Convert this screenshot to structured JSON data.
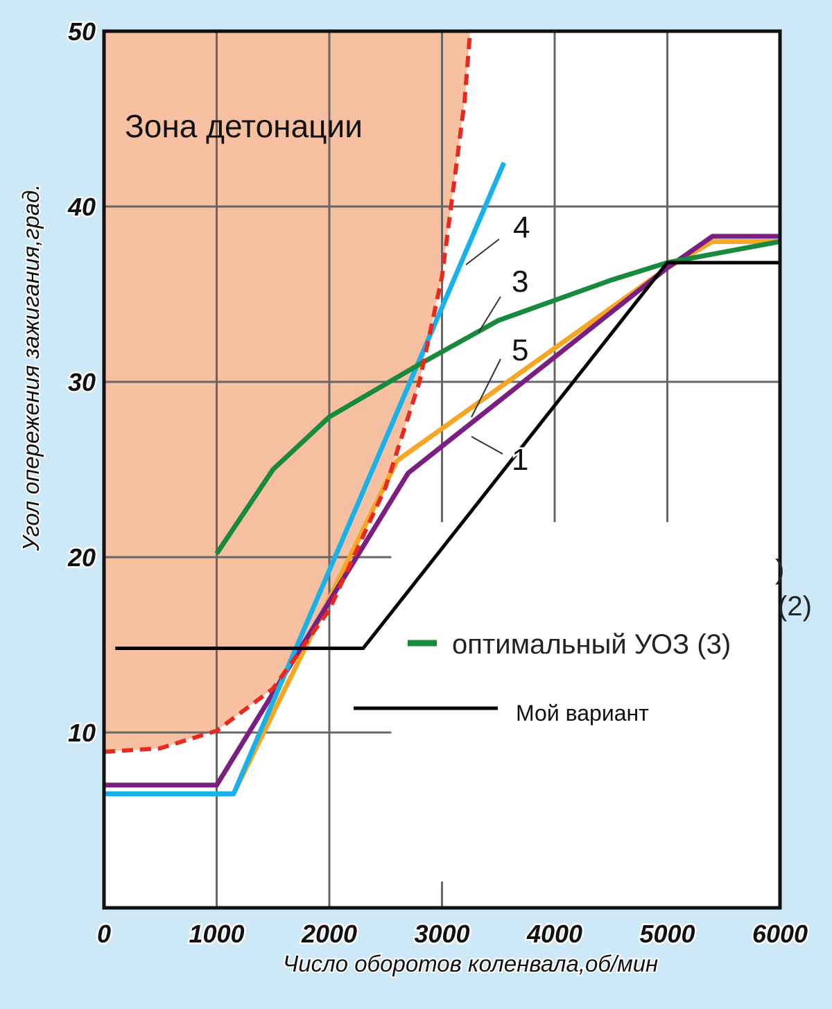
{
  "chart_data": {
    "type": "line",
    "title": "",
    "xlabel": "Число оборотов коленвала,об/мин",
    "ylabel": "Угол опережения зажигания,град.",
    "xlim": [
      0,
      6000
    ],
    "ylim": [
      0,
      50
    ],
    "xticks": [
      0,
      1000,
      2000,
      3000,
      4000,
      5000,
      6000
    ],
    "yticks": [
      10,
      20,
      30,
      40,
      50
    ],
    "grid": true,
    "zone_label": "Зона детонации",
    "series": [
      {
        "name": "detonation-boundary",
        "label": "",
        "color": "#e8291f",
        "style": "dashed",
        "x": [
          0,
          500,
          1000,
          1500,
          2000,
          2500,
          2800,
          3000,
          3100,
          3200,
          3250
        ],
        "y": [
          8.9,
          9.1,
          10.1,
          12.5,
          17,
          24,
          30,
          36,
          41,
          46,
          50
        ]
      },
      {
        "name": "curve-4",
        "label": "4",
        "color": "#1ab0e8",
        "style": "solid",
        "x": [
          0,
          1150,
          3550
        ],
        "y": [
          6.5,
          6.5,
          42.5
        ]
      },
      {
        "name": "curve-3",
        "label": "3",
        "color": "#178a3e",
        "style": "solid",
        "x": [
          1000,
          1500,
          2000,
          2800,
          3500,
          4500,
          5000,
          6000
        ],
        "y": [
          20.2,
          25,
          28,
          31,
          33.5,
          35.8,
          36.8,
          38
        ]
      },
      {
        "name": "curve-5",
        "label": "5",
        "color": "#f5a623",
        "style": "solid",
        "x": [
          0,
          1150,
          2600,
          5000,
          5400,
          6000
        ],
        "y": [
          6.5,
          6.5,
          25.5,
          36.5,
          38,
          38
        ]
      },
      {
        "name": "curve-1",
        "label": "1",
        "color": "#7b1e82",
        "style": "solid",
        "x": [
          0,
          1000,
          2700,
          5000,
          5400,
          6000
        ],
        "y": [
          7,
          7,
          24.8,
          36.5,
          38.3,
          38.3
        ]
      },
      {
        "name": "my-variant",
        "label": "",
        "color": "#000000",
        "style": "solid",
        "x": [
          100,
          2300,
          5000,
          6000
        ],
        "y": [
          14.8,
          14.8,
          36.8,
          36.8
        ]
      }
    ],
    "legend": [
      {
        "label": "оптимальный УОЗ (3)",
        "color": "#178a3e"
      },
      {
        "label": "Мой вариант",
        "color": "#000000"
      }
    ],
    "legend_fragments": [
      "(2)",
      ")"
    ],
    "zone_color": "#f7c0a0",
    "background": "#cde9f8"
  }
}
